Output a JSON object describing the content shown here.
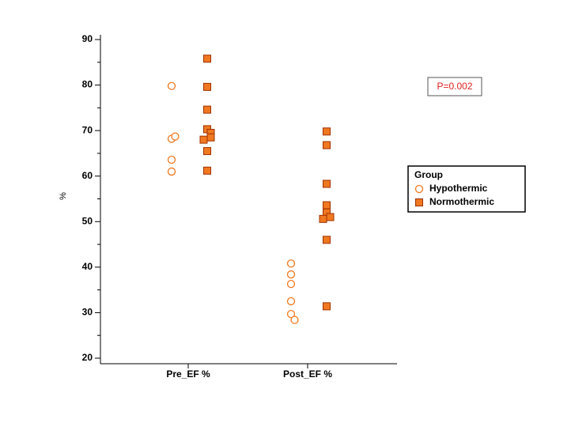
{
  "chart_data": {
    "type": "strip",
    "y_label": "%",
    "annotation": "P=0.002",
    "categories": [
      "Pre_EF %",
      "Post_EF %"
    ],
    "series": [
      {
        "name": "Hypothermic",
        "color": "#f07820",
        "marker": "open-circle",
        "values": [
          [
            79.8,
            68.2,
            68.7,
            63.6,
            61.0
          ],
          [
            40.8,
            38.4,
            36.3,
            32.5,
            29.7,
            28.4
          ]
        ]
      },
      {
        "name": "Normothermic",
        "color": "#f07820",
        "marker": "filled-square",
        "values": [
          [
            85.8,
            79.6,
            74.6,
            70.3,
            69.5,
            68.5,
            68.0,
            65.5,
            61.2
          ],
          [
            69.8,
            66.8,
            58.3,
            53.6,
            52.0,
            51.0,
            50.6,
            46.0,
            31.4
          ]
        ]
      }
    ],
    "legend_title": "Group",
    "ylim": [
      20,
      90
    ],
    "yticks": [
      20,
      30,
      40,
      50,
      60,
      70,
      80,
      90
    ],
    "yminorticks": [
      25,
      35,
      45,
      55,
      65,
      75,
      85
    ]
  }
}
